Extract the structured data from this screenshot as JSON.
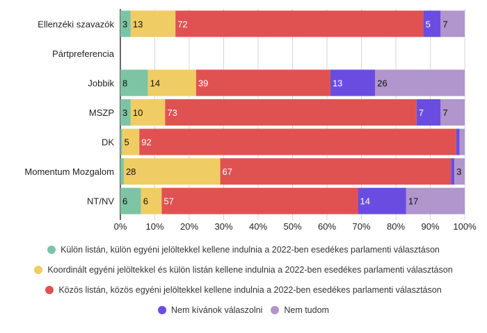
{
  "chart_data": {
    "type": "bar",
    "orientation": "horizontal",
    "stacked": true,
    "title": "",
    "xlabel": "",
    "ylabel": "",
    "xlim": [
      0,
      100
    ],
    "x_ticks": [
      "0%",
      "10%",
      "20%",
      "30%",
      "40%",
      "50%",
      "60%",
      "70%",
      "80%",
      "90%",
      "100%"
    ],
    "grid": true,
    "legend_position": "bottom",
    "categories": [
      "Ellenzéki szavazók",
      "Pártpreferencia",
      "Jobbik",
      "MSZP",
      "DK",
      "Momentum Mozgalom",
      "NT/NV"
    ],
    "series": [
      {
        "name": "Külön listán, külön egyéni jelöltekkel kellene indulnia a 2022-ben esedékes parlamenti választáson",
        "color": "#7cc4a4",
        "values": [
          3,
          null,
          8,
          3,
          0.5,
          1,
          6
        ],
        "labels": [
          "3",
          "",
          "8",
          "3",
          "",
          "",
          "6"
        ]
      },
      {
        "name": "Koordinált egyéni jelöltekkel és külön listán kellene indulnia a 2022-ben esedékes parlamenti választáson",
        "color": "#f0cc64",
        "values": [
          13,
          null,
          14,
          10,
          5,
          28,
          6
        ],
        "labels": [
          "13",
          "",
          "14",
          "10",
          "5",
          "28",
          "6"
        ]
      },
      {
        "name": "Közös listán, közös egyéni jelöltekkel kellene indulnia a 2022-ben esedékes parlamenti választáson",
        "color": "#e05252",
        "values": [
          72,
          null,
          39,
          73,
          92,
          67,
          57
        ],
        "labels": [
          "72",
          "",
          "39",
          "73",
          "92",
          "67",
          "57"
        ]
      },
      {
        "name": "Nem kívánok válaszolni",
        "color": "#6a4de0",
        "values": [
          5,
          null,
          13,
          7,
          1,
          1,
          14
        ],
        "labels": [
          "5",
          "",
          "13",
          "7",
          "",
          "",
          "14"
        ]
      },
      {
        "name": "Nem tudom",
        "color": "#b096cc",
        "values": [
          7,
          null,
          26,
          7,
          1.5,
          3,
          17
        ],
        "labels": [
          "7",
          "",
          "26",
          "7",
          "",
          "3",
          "17"
        ]
      }
    ]
  }
}
